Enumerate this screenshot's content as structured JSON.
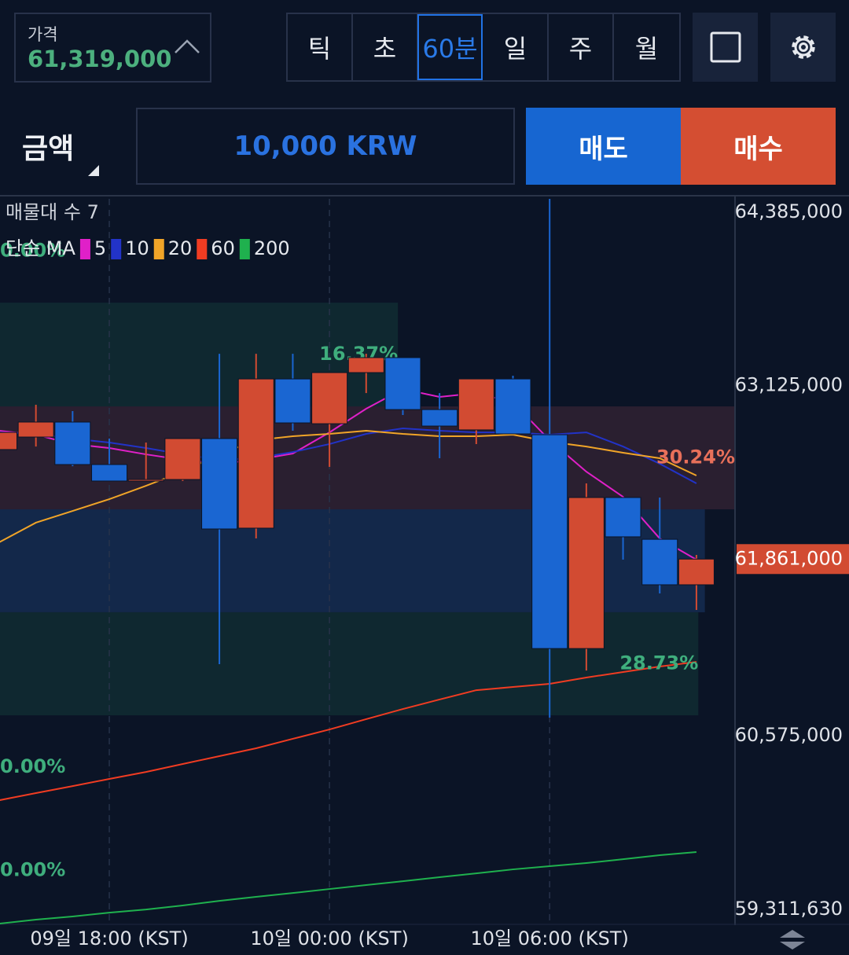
{
  "header": {
    "price_label": "가격",
    "price": "61,319,000",
    "tabs": [
      "틱",
      "초",
      "60분",
      "일",
      "주",
      "월"
    ],
    "active_tab": 2
  },
  "order": {
    "amount_label": "금액",
    "amount": "10,000 KRW",
    "sell": "매도",
    "buy": "매수"
  },
  "chart_data": {
    "type": "candlestick",
    "profile_title": "매물대 수 7",
    "ma_label": "단순 MA",
    "categories": [
      null,
      null,
      null,
      "09일 18:00 (KST)",
      null,
      null,
      null,
      null,
      null,
      "10일 00:00 (KST)",
      null,
      null,
      null,
      null,
      null,
      "10일 06:00 (KST)",
      null,
      null,
      null,
      null
    ],
    "open": [
      62658000,
      62749000,
      62858000,
      62549000,
      62429000,
      62440000,
      62738000,
      62086000,
      63172000,
      62846000,
      63218000,
      63327000,
      62949000,
      62801000,
      63172000,
      62766000,
      61210000,
      62309000,
      62005000,
      61674000
    ],
    "high": [
      62783000,
      62984000,
      62938000,
      62738000,
      62709000,
      62738000,
      63355000,
      63355000,
      63355000,
      63218000,
      63355000,
      63327000,
      63069000,
      63172000,
      63195000,
      64482000,
      62412000,
      62309000,
      62309000,
      61891000
    ],
    "low": [
      62658000,
      62680000,
      62537000,
      62429000,
      62429000,
      62429000,
      61096000,
      62011000,
      62795000,
      62532000,
      63069000,
      62909000,
      62595000,
      62698000,
      62772000,
      60707000,
      61050000,
      61857000,
      61611000,
      61491000
    ],
    "close": [
      62783000,
      62858000,
      62549000,
      62429000,
      62440000,
      62738000,
      62080000,
      63172000,
      62852000,
      63218000,
      63327000,
      62949000,
      62829000,
      63172000,
      62772000,
      61210000,
      62309000,
      62023000,
      61674000,
      61861000
    ],
    "up_color": "#d24b32",
    "down_color": "#1a66d2",
    "series": [
      {
        "name": "5",
        "color": "#e020c8",
        "values": [
          62795000,
          62766000,
          62698000,
          62669000,
          62623000,
          62583000,
          62555000,
          62583000,
          62629000,
          62783000,
          62955000,
          63098000,
          63041000,
          63069000,
          63001000,
          62726000,
          62497000,
          62314000,
          62011000,
          61857000
        ]
      },
      {
        "name": "10",
        "color": "#2233c8",
        "values": [
          62783000,
          62772000,
          62738000,
          62709000,
          62669000,
          62623000,
          62583000,
          62595000,
          62640000,
          62698000,
          62772000,
          62812000,
          62795000,
          62783000,
          62783000,
          62766000,
          62783000,
          62680000,
          62555000,
          62412000
        ]
      },
      {
        "name": "20",
        "color": "#f0a428",
        "values": [
          61983000,
          62126000,
          62211000,
          62297000,
          62394000,
          62497000,
          62623000,
          62726000,
          62755000,
          62772000,
          62795000,
          62772000,
          62755000,
          62755000,
          62766000,
          62715000,
          62680000,
          62635000,
          62595000,
          62469000
        ]
      },
      {
        "name": "60",
        "color": "#f03c22",
        "values": [
          60106000,
          60158000,
          60209000,
          60261000,
          60312000,
          60370000,
          60427000,
          60484000,
          60553000,
          60621000,
          60696000,
          60770000,
          60839000,
          60907000,
          60930000,
          60953000,
          60999000,
          61039000,
          61079000,
          61113000
        ]
      },
      {
        "name": "200",
        "color": "#1fb14e",
        "values": [
          59208000,
          59237000,
          59260000,
          59288000,
          59311000,
          59340000,
          59374000,
          59403000,
          59431000,
          59460000,
          59489000,
          59517000,
          59546000,
          59574000,
          59603000,
          59626000,
          59649000,
          59677000,
          59706000,
          59729000
        ]
      }
    ],
    "zones": [
      {
        "low": 63727000,
        "high": 64477000,
        "value": 0,
        "label": "0.00%",
        "color": "#0f2530",
        "text_color": "#3fae7d"
      },
      {
        "low": 62972000,
        "high": 63727000,
        "value": 16.37,
        "label": "16.37%",
        "color": "#0f2830",
        "text_color": "#3fae7d"
      },
      {
        "low": 62223000,
        "high": 62972000,
        "value": 30.24,
        "label": "30.24%",
        "color": "#2a1f30",
        "text_color": "#e8705a"
      },
      {
        "low": 61474000,
        "high": 62223000,
        "value": 29,
        "color": "#13284a"
      },
      {
        "low": 60724000,
        "high": 61474000,
        "value": 28.73,
        "label": "28.73%",
        "color": "#0f2830",
        "text_color": "#3fae7d"
      },
      {
        "low": 59969000,
        "high": 60724000,
        "value": 0,
        "label": "0.00%",
        "color": "#0f2830",
        "text_color": "#3fae7d"
      },
      {
        "low": 59220000,
        "high": 59969000,
        "value": 0,
        "label": "0.00%",
        "color": "#0f2830",
        "text_color": "#3fae7d"
      }
    ],
    "ylim": [
      59311630,
      64385000
    ],
    "yticks": [
      {
        "value": 64385000,
        "label": "64,385,000"
      },
      {
        "value": 63125000,
        "label": "63,125,000"
      },
      {
        "value": 60575000,
        "label": "60,575,000"
      },
      {
        "value": 59311630,
        "label": "59,311,630"
      }
    ],
    "current_price": {
      "value": 61861000,
      "label": "61,861,000"
    }
  }
}
